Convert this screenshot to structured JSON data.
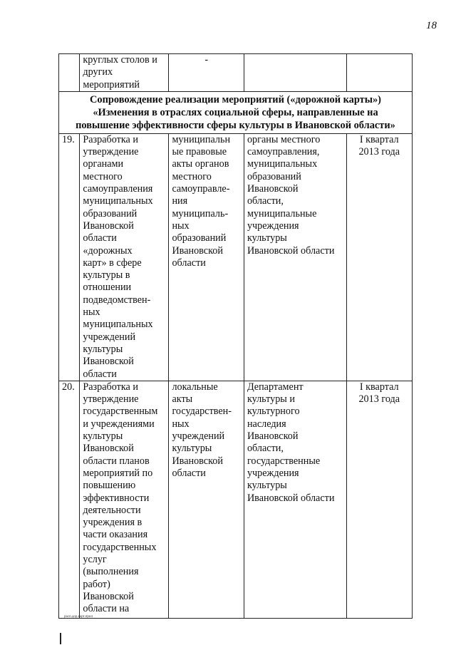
{
  "page_number": "18",
  "table": {
    "continuation_row": {
      "number": "",
      "event": [
        "круглых столов и",
        "других",
        "мероприятий"
      ],
      "document": "-",
      "responsible": [],
      "deadline": []
    },
    "section_header": [
      "Сопровождение реализации мероприятий («дорожной карты»)",
      "«Изменения в отраслях социальной сферы, направленные на",
      "повышение эффективности сферы культуры в Ивановской области»"
    ],
    "rows": [
      {
        "number": "19.",
        "event": [
          "Разработка и",
          "утверждение",
          "органами",
          "местного",
          "самоуправления",
          "муниципальных",
          "образований",
          "Ивановской",
          "области",
          "«дорожных",
          "карт» в сфере",
          "культуры в",
          "отношении",
          "подведомствен-",
          "ных",
          "муниципальных",
          "учреждений",
          "культуры",
          "Ивановской",
          "области"
        ],
        "document": [
          "муниципальн",
          "ые правовые",
          "акты органов",
          "местного",
          "самоуправле-",
          "ния",
          "муниципаль-",
          "ных",
          "образований",
          "Ивановской",
          "области"
        ],
        "responsible": [
          "органы местного",
          "самоуправления,",
          "муниципальных",
          "образований",
          "Ивановской",
          "области,",
          "муниципальные",
          "учреждения",
          "культуры",
          "Ивановской области"
        ],
        "deadline": [
          "I квартал",
          "2013 года"
        ]
      },
      {
        "number": "20.",
        "event": [
          "Разработка и",
          "утверждение",
          "государственным",
          "и учреждениями",
          "культуры",
          "Ивановской",
          "области планов",
          "мероприятий по",
          "повышению",
          "эффективности",
          "деятельности",
          "учреждения в",
          "части оказания",
          "государственных",
          "услуг",
          "(выполнения",
          "работ)",
          "Ивановской",
          "области на"
        ],
        "document": [
          "локальные",
          "акты",
          "государствен-",
          "ных",
          "учреждений",
          "культуры",
          "Ивановской",
          "области"
        ],
        "responsible": [
          "Департамент",
          "культуры и",
          "культурного",
          "наследия",
          "Ивановской",
          "области,",
          "государственные",
          "учреждения",
          "культуры",
          "Ивановской области"
        ],
        "deadline": [
          "I квартал",
          "2013 года"
        ]
      }
    ]
  },
  "footer": "расп.дор.карт.прил"
}
